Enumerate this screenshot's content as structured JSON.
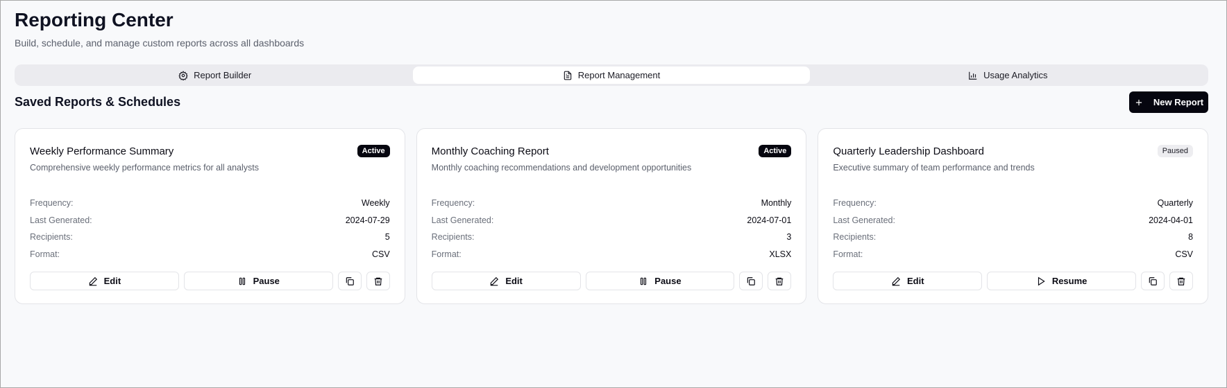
{
  "header": {
    "title": "Reporting Center",
    "subtitle": "Build, schedule, and manage custom reports across all dashboards"
  },
  "tabs": [
    {
      "label": "Report Builder",
      "icon": "gear-icon",
      "active": false
    },
    {
      "label": "Report Management",
      "icon": "file-text-icon",
      "active": true
    },
    {
      "label": "Usage Analytics",
      "icon": "bar-chart-icon",
      "active": false
    }
  ],
  "section": {
    "title": "Saved Reports & Schedules",
    "new_button": "New Report"
  },
  "labels": {
    "frequency": "Frequency:",
    "last_generated": "Last Generated:",
    "recipients": "Recipients:",
    "format": "Format:",
    "edit": "Edit"
  },
  "reports": [
    {
      "title": "Weekly Performance Summary",
      "status": "Active",
      "description": "Comprehensive weekly performance metrics for all analysts",
      "frequency": "Weekly",
      "last_generated": "2024-07-29",
      "recipients": "5",
      "format": "CSV",
      "toggle_label": "Pause"
    },
    {
      "title": "Monthly Coaching Report",
      "status": "Active",
      "description": "Monthly coaching recommendations and development opportunities",
      "frequency": "Monthly",
      "last_generated": "2024-07-01",
      "recipients": "3",
      "format": "XLSX",
      "toggle_label": "Pause"
    },
    {
      "title": "Quarterly Leadership Dashboard",
      "status": "Paused",
      "description": "Executive summary of team performance and trends",
      "frequency": "Quarterly",
      "last_generated": "2024-04-01",
      "recipients": "8",
      "format": "CSV",
      "toggle_label": "Resume"
    }
  ],
  "colors": {
    "primary": "#06060f",
    "background": "#f8f9fb",
    "muted_text": "#5a5f6b"
  }
}
